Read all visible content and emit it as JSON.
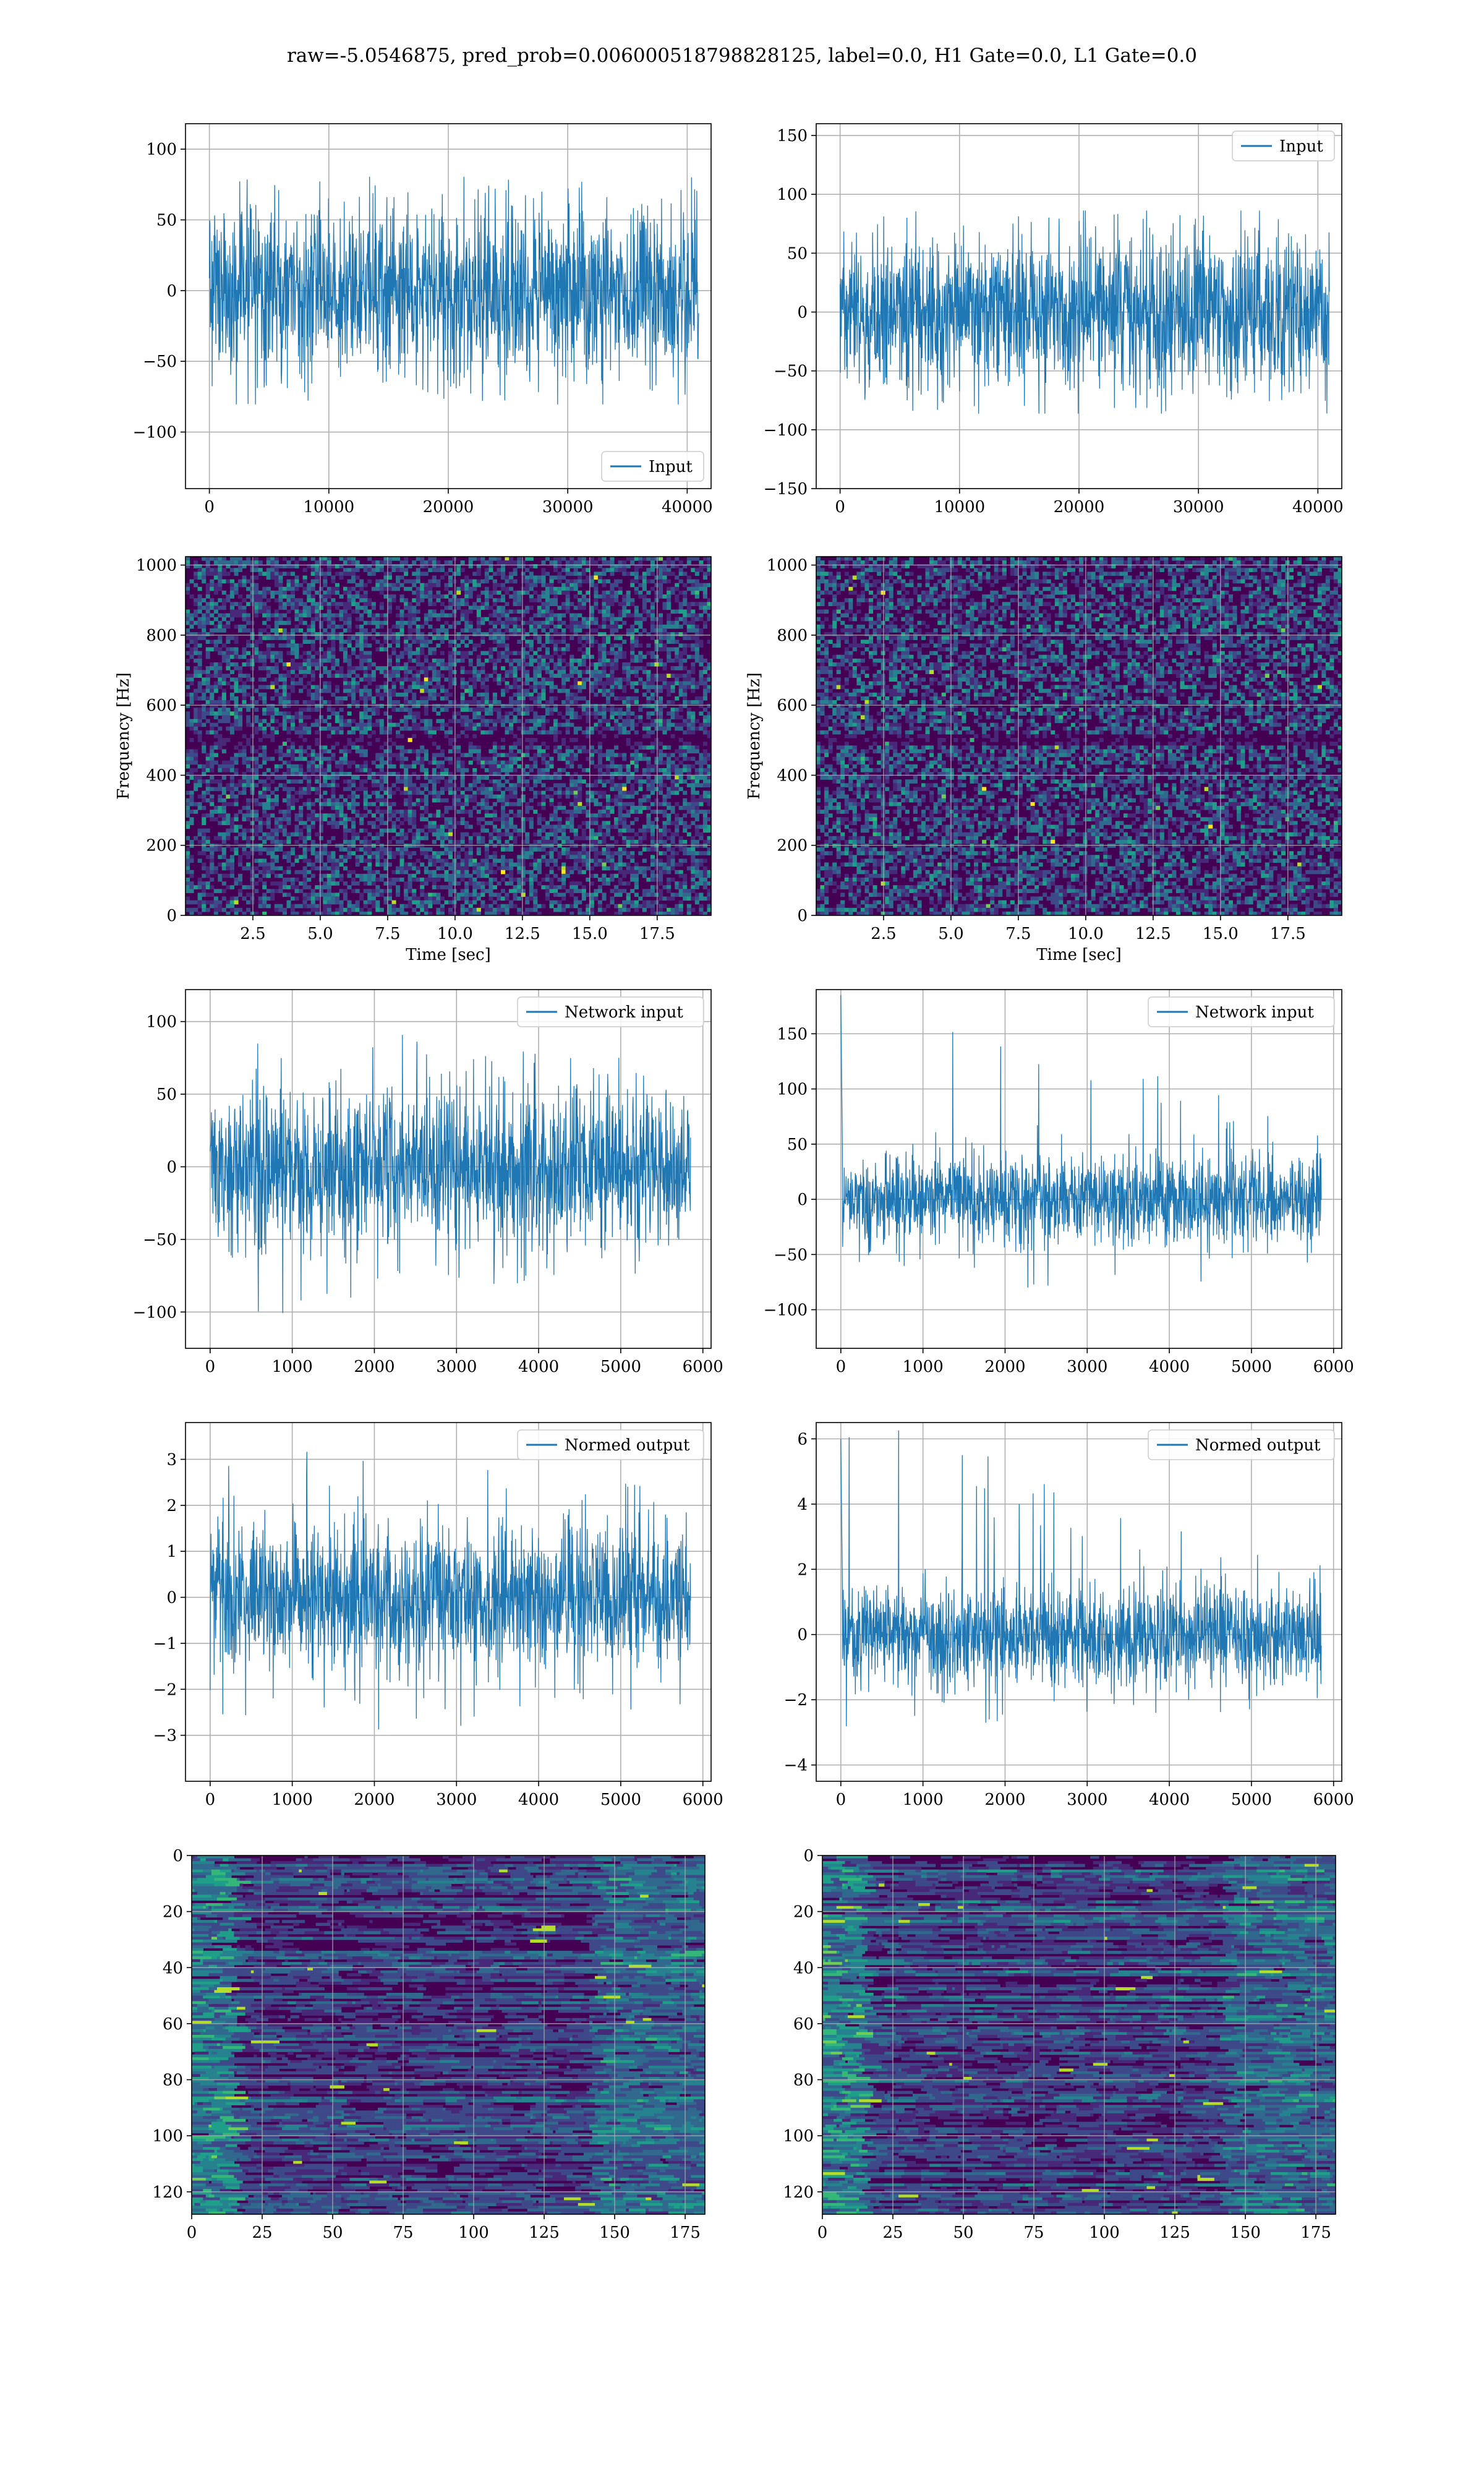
{
  "figure": {
    "suptitle": "raw=-5.0546875, pred_prob=0.006000518798828125, label=0.0, H1 Gate=0.0, L1 Gate=0.0"
  },
  "colors": {
    "series": "#1f77b4",
    "grid": "#b0b0b0",
    "viridis": [
      "#440154",
      "#482878",
      "#3e4989",
      "#31688e",
      "#26828e",
      "#1f9e89",
      "#35b779",
      "#6ece58",
      "#b5de2b",
      "#fde725"
    ]
  },
  "chart_data": [
    {
      "id": "h1-input",
      "type": "line",
      "xlim": [
        -2000,
        42000
      ],
      "ylim": [
        -140,
        118
      ],
      "xticks": [
        0,
        10000,
        20000,
        30000,
        40000
      ],
      "xtick_labels": [
        "0",
        "10000",
        "20000",
        "30000",
        "40000"
      ],
      "yticks": [
        -100,
        -50,
        0,
        50,
        100
      ],
      "ytick_labels": [
        "−100",
        "−50",
        "0",
        "50",
        "100"
      ],
      "grid": true,
      "legend": [
        "Input"
      ],
      "legend_loc": "lower right",
      "xlabel": "",
      "ylabel": "",
      "series": [
        {
          "name": "Input",
          "x_range": [
            0,
            40960
          ],
          "amplitude": 30,
          "envelope": [
            [
              -70,
              70
            ],
            [
              -70,
              70
            ]
          ]
        }
      ]
    },
    {
      "id": "l1-input",
      "type": "line",
      "xlim": [
        -2000,
        42000
      ],
      "ylim": [
        -150,
        160
      ],
      "xticks": [
        0,
        10000,
        20000,
        30000,
        40000
      ],
      "xtick_labels": [
        "0",
        "10000",
        "20000",
        "30000",
        "40000"
      ],
      "yticks": [
        -150,
        -100,
        -50,
        0,
        50,
        100,
        150
      ],
      "ytick_labels": [
        "−150",
        "−100",
        "−50",
        "0",
        "50",
        "100",
        "150"
      ],
      "grid": true,
      "legend": [
        "Input"
      ],
      "legend_loc": "upper right",
      "xlabel": "",
      "ylabel": "",
      "series": [
        {
          "name": "Input",
          "x_range": [
            0,
            40960
          ],
          "amplitude": 32,
          "envelope": [
            [
              -75,
              75
            ],
            [
              -75,
              75
            ]
          ]
        }
      ]
    },
    {
      "id": "h1-spectrogram",
      "type": "heatmap",
      "xlim": [
        0,
        19.5
      ],
      "ylim": [
        0,
        1024
      ],
      "xticks": [
        2.5,
        5.0,
        7.5,
        10.0,
        12.5,
        15.0,
        17.5
      ],
      "xtick_labels": [
        "2.5",
        "5.0",
        "7.5",
        "10.0",
        "12.5",
        "15.0",
        "17.5"
      ],
      "yticks": [
        0,
        200,
        400,
        600,
        800,
        1000
      ],
      "ytick_labels": [
        "0",
        "200",
        "400",
        "600",
        "800",
        "1000"
      ],
      "grid": true,
      "xlabel": "Time [sec]",
      "ylabel": "Frequency [Hz]",
      "dark_band_hz": 500
    },
    {
      "id": "l1-spectrogram",
      "type": "heatmap",
      "xlim": [
        0,
        19.5
      ],
      "ylim": [
        0,
        1024
      ],
      "xticks": [
        2.5,
        5.0,
        7.5,
        10.0,
        12.5,
        15.0,
        17.5
      ],
      "xtick_labels": [
        "2.5",
        "5.0",
        "7.5",
        "10.0",
        "12.5",
        "15.0",
        "17.5"
      ],
      "yticks": [
        0,
        200,
        400,
        600,
        800,
        1000
      ],
      "ytick_labels": [
        "0",
        "200",
        "400",
        "600",
        "800",
        "1000"
      ],
      "grid": true,
      "xlabel": "Time [sec]",
      "ylabel": "Frequency [Hz]",
      "dark_band_hz": 500
    },
    {
      "id": "h1-network-input",
      "type": "line",
      "xlim": [
        -300,
        6100
      ],
      "ylim": [
        -125,
        122
      ],
      "xticks": [
        0,
        1000,
        2000,
        3000,
        4000,
        5000,
        6000
      ],
      "xtick_labels": [
        "0",
        "1000",
        "2000",
        "3000",
        "4000",
        "5000",
        "6000"
      ],
      "yticks": [
        -100,
        -50,
        0,
        50,
        100
      ],
      "ytick_labels": [
        "−100",
        "−50",
        "0",
        "50",
        "100"
      ],
      "grid": true,
      "legend": [
        "Network input"
      ],
      "legend_loc": "upper right",
      "xlabel": "",
      "ylabel": "",
      "series": [
        {
          "name": "Network input",
          "x_range": [
            0,
            5850
          ],
          "amplitude": 26,
          "envelope": [
            [
              -95,
              95
            ],
            [
              -60,
              60
            ]
          ]
        }
      ]
    },
    {
      "id": "l1-network-input",
      "type": "line",
      "xlim": [
        -300,
        6100
      ],
      "ylim": [
        -135,
        190
      ],
      "xticks": [
        0,
        1000,
        2000,
        3000,
        4000,
        5000,
        6000
      ],
      "xtick_labels": [
        "0",
        "1000",
        "2000",
        "3000",
        "4000",
        "5000",
        "6000"
      ],
      "yticks": [
        -100,
        -50,
        0,
        50,
        100,
        150
      ],
      "ytick_labels": [
        "−100",
        "−50",
        "0",
        "50",
        "100",
        "150"
      ],
      "grid": true,
      "legend": [
        "Network input"
      ],
      "legend_loc": "upper right",
      "xlabel": "",
      "ylabel": "",
      "series": [
        {
          "name": "Network input",
          "x_range": [
            0,
            5850
          ],
          "amplitude": 20,
          "envelope": [
            [
              -80,
              185
            ],
            [
              -60,
              60
            ]
          ]
        }
      ]
    },
    {
      "id": "h1-normed-output",
      "type": "line",
      "xlim": [
        -300,
        6100
      ],
      "ylim": [
        -4.0,
        3.8
      ],
      "xticks": [
        0,
        1000,
        2000,
        3000,
        4000,
        5000,
        6000
      ],
      "xtick_labels": [
        "0",
        "1000",
        "2000",
        "3000",
        "4000",
        "5000",
        "6000"
      ],
      "yticks": [
        -3,
        -2,
        -1,
        0,
        1,
        2,
        3
      ],
      "ytick_labels": [
        "−3",
        "−2",
        "−1",
        "0",
        "1",
        "2",
        "3"
      ],
      "grid": true,
      "legend": [
        "Normed output"
      ],
      "legend_loc": "upper right",
      "xlabel": "",
      "ylabel": "",
      "series": [
        {
          "name": "Normed output",
          "x_range": [
            0,
            5850
          ],
          "amplitude": 0.8,
          "envelope": [
            [
              -3.0,
              3.1
            ],
            [
              -2.0,
              2.0
            ]
          ]
        }
      ]
    },
    {
      "id": "l1-normed-output",
      "type": "line",
      "xlim": [
        -300,
        6100
      ],
      "ylim": [
        -4.5,
        6.5
      ],
      "xticks": [
        0,
        1000,
        2000,
        3000,
        4000,
        5000,
        6000
      ],
      "xtick_labels": [
        "0",
        "1000",
        "2000",
        "3000",
        "4000",
        "5000",
        "6000"
      ],
      "yticks": [
        -4,
        -2,
        0,
        2,
        4,
        6
      ],
      "ytick_labels": [
        "−4",
        "−2",
        "0",
        "2",
        "4",
        "6"
      ],
      "grid": true,
      "legend": [
        "Normed output"
      ],
      "legend_loc": "upper right",
      "xlabel": "",
      "ylabel": "",
      "series": [
        {
          "name": "Normed output",
          "x_range": [
            0,
            5850
          ],
          "amplitude": 0.75,
          "envelope": [
            [
              -2.5,
              6.0
            ],
            [
              -2.0,
              2.0
            ]
          ]
        }
      ]
    },
    {
      "id": "h1-features",
      "type": "heatmap",
      "xlim": [
        0,
        182
      ],
      "ylim": [
        128,
        0
      ],
      "xticks": [
        0,
        25,
        50,
        75,
        100,
        125,
        150,
        175
      ],
      "xtick_labels": [
        "0",
        "25",
        "50",
        "75",
        "100",
        "125",
        "150",
        "175"
      ],
      "yticks": [
        0,
        20,
        40,
        60,
        80,
        100,
        120
      ],
      "ytick_labels": [
        "0",
        "20",
        "40",
        "60",
        "80",
        "100",
        "120"
      ],
      "grid": true,
      "xlabel": "",
      "ylabel": ""
    },
    {
      "id": "l1-features",
      "type": "heatmap",
      "xlim": [
        0,
        182
      ],
      "ylim": [
        128,
        0
      ],
      "xticks": [
        0,
        25,
        50,
        75,
        100,
        125,
        150,
        175
      ],
      "xtick_labels": [
        "0",
        "25",
        "50",
        "75",
        "100",
        "125",
        "150",
        "175"
      ],
      "yticks": [
        0,
        20,
        40,
        60,
        80,
        100,
        120
      ],
      "ytick_labels": [
        "0",
        "20",
        "40",
        "60",
        "80",
        "100",
        "120"
      ],
      "grid": true,
      "xlabel": "",
      "ylabel": ""
    }
  ]
}
